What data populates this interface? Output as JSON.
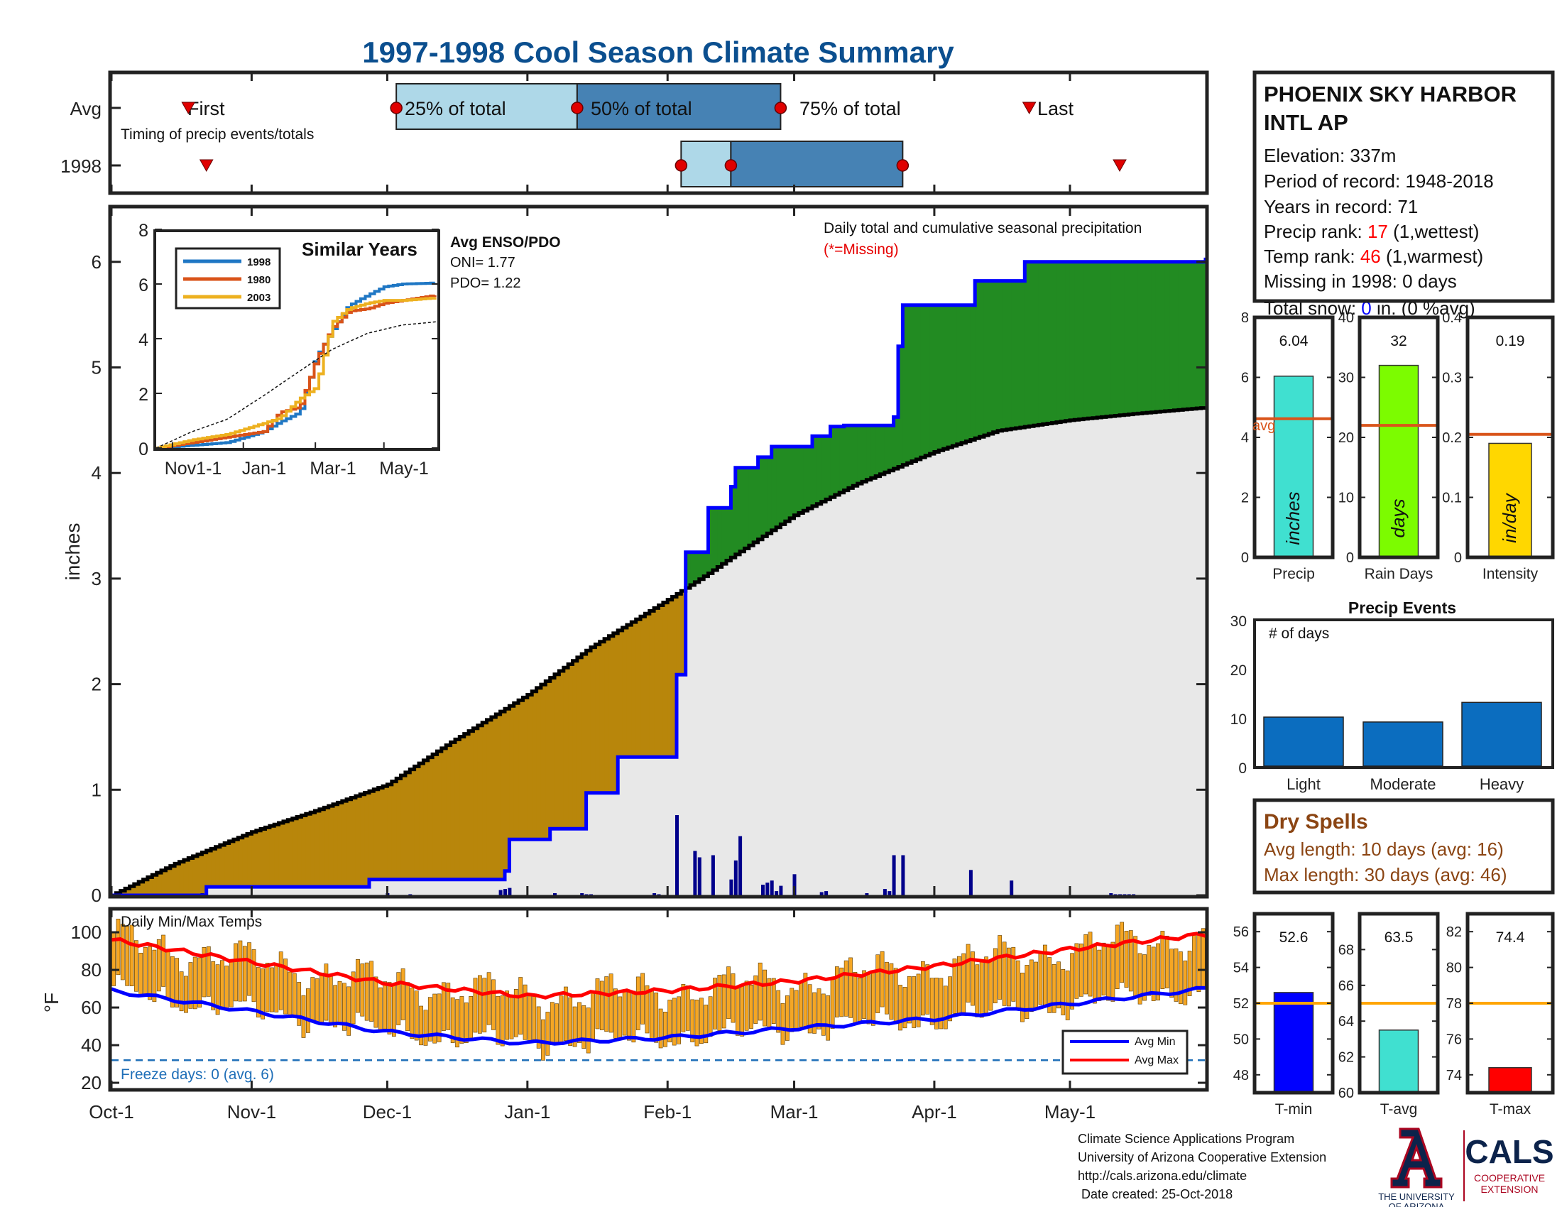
{
  "title": "1997-1998 Cool Season Climate Summary",
  "timing": {
    "avg_label": "Avg",
    "year_label": "1998",
    "caption": "Timing of precip events/totals",
    "first_label": "First",
    "q25_label": "25% of total",
    "q50_label": "50% of total",
    "q75_label": "75% of total",
    "last_label": "Last",
    "avg_dates": {
      "first": "Oct-18",
      "q25": "Dec-3",
      "q50": "Jan-12",
      "q75": "Feb-26",
      "last": "Apr-22"
    },
    "year_dates": {
      "first": "Oct-22",
      "q25": "Feb-4",
      "q50": "Feb-15",
      "q75": "Mar-25",
      "last": "May-12"
    }
  },
  "station": {
    "name_line1": "PHOENIX SKY HARBOR",
    "name_line2": "INTL AP",
    "elevation": "Elevation: 337m",
    "period": "Period of record: 1948-2018",
    "years": "Years in record: 71",
    "precip_rank_label": "Precip rank: ",
    "precip_rank_value": "17",
    "precip_rank_suffix": " (1,wettest)",
    "temp_rank_label": "Temp rank: ",
    "temp_rank_value": "46",
    "temp_rank_suffix": " (1,warmest)",
    "missing": "Missing in 1998: 0 days",
    "snow_label": "Total snow: ",
    "snow_value": "0",
    "snow_suffix": " in. (0 %avg)"
  },
  "main_panel": {
    "ylabel": "inches",
    "caption": "Daily total and cumulative seasonal precipitation",
    "missing_note": "(*=Missing)",
    "enso_title": "Avg ENSO/PDO",
    "oni": "ONI= 1.77",
    "pdo": "PDO= 1.22",
    "xticks": [
      "Oct-1",
      "Nov-1",
      "Dec-1",
      "Jan-1",
      "Feb-1",
      "Mar-1",
      "Apr-1",
      "May-1"
    ]
  },
  "inset": {
    "title": "Similar Years",
    "legend": [
      "1998",
      "1980",
      "2003"
    ],
    "colors": [
      "#1f77c4",
      "#d95319",
      "#edb120"
    ],
    "xticks": [
      "Nov1-1",
      "Jan-1",
      "Mar-1",
      "May-1"
    ],
    "yticks": [
      "0",
      "2",
      "4",
      "6",
      "8"
    ]
  },
  "temp_panel": {
    "title": "Daily Min/Max Temps",
    "ylabel": "°F",
    "freeze": "Freeze days: 0 (avg. 6)",
    "legend_min": "Avg Min",
    "legend_max": "Avg Max"
  },
  "stat_bars": {
    "precip": {
      "label": "Precip",
      "value_text": "6.04",
      "unit": "inches",
      "avg_label": "avg",
      "yticks": [
        "0",
        "2",
        "4",
        "6",
        "8"
      ]
    },
    "raindays": {
      "label": "Rain Days",
      "value_text": "32",
      "unit": "days",
      "yticks": [
        "0",
        "10",
        "20",
        "30",
        "40"
      ]
    },
    "intensity": {
      "label": "Intensity",
      "value_text": "0.19",
      "unit": "in/day",
      "yticks": [
        "0",
        "0.1",
        "0.2",
        "0.3",
        "0.4"
      ]
    }
  },
  "precip_events": {
    "title": "Precip Events",
    "caption": "# of days",
    "labels": [
      "Light",
      "Moderate",
      "Heavy"
    ],
    "yticks": [
      "0",
      "10",
      "20",
      "30"
    ]
  },
  "dry_spells": {
    "title": "Dry Spells",
    "avg_length": "Avg length: 10 days (avg: 16)",
    "max_length": "Max length: 30 days (avg: 46)"
  },
  "temp_bars": {
    "tmin": {
      "label": "T-min",
      "value_text": "52.6",
      "yticks": [
        "48",
        "50",
        "52",
        "54",
        "56"
      ]
    },
    "tavg": {
      "label": "T-avg",
      "value_text": "63.5",
      "yticks": [
        "60",
        "62",
        "64",
        "66",
        "68"
      ]
    },
    "tmax": {
      "label": "T-max",
      "value_text": "74.4",
      "yticks": [
        "74",
        "76",
        "78",
        "80",
        "82"
      ]
    }
  },
  "footer": {
    "line1": "Climate Science Applications Program",
    "line2": "University of Arizona Cooperative Extension",
    "line3": "http://cals.arizona.edu/climate",
    "line4": " Date created: 25-Oct-2018",
    "ua_line1": "THE UNIVERSITY",
    "ua_line2": "OF ARIZONA",
    "cals": "CALS",
    "cals_sub1": "COOPERATIVE",
    "cals_sub2": "EXTENSION"
  },
  "colors": {
    "title": "#0b4f8f",
    "below_avg": "#b8860b",
    "above_avg": "#228b22",
    "climo_fill": "#e8e8e8",
    "obs_line": "#0000ff",
    "daily_bar": "#00008b",
    "temp_bar": "#f5a623",
    "avg_min": "#0000ff",
    "avg_max": "#ff0000",
    "red": "#ff0000",
    "brown": "#8b4513"
  },
  "chart_data": [
    {
      "type": "area",
      "title": "Daily total and cumulative seasonal precipitation",
      "ylabel": "inches",
      "ylim": [
        0,
        6.5
      ],
      "xlim": [
        "Oct-1",
        "May-31"
      ],
      "series": [
        {
          "name": "1998",
          "x": [
            "Oct-1",
            "Oct-22",
            "Nov-27",
            "Dec-27",
            "Dec-28",
            "Jan-5",
            "Jan-6",
            "Jan-13",
            "Jan-14",
            "Jan-20",
            "Jan-21",
            "Jan-27",
            "Jan-28",
            "Feb-2",
            "Feb-3",
            "Feb-3",
            "Feb-4",
            "Feb-4",
            "Feb-5",
            "Feb-9",
            "Feb-10",
            "Feb-15",
            "Feb-16",
            "Feb-20",
            "Feb-21",
            "Feb-24",
            "Feb-25",
            "Mar-5",
            "Mar-6",
            "Mar-9",
            "Mar-10",
            "Mar-12",
            "Mar-15",
            "Mar-20",
            "Mar-22",
            "Mar-23",
            "Mar-24",
            "Mar-25",
            "Apr-10",
            "Apr-21",
            "May-31"
          ],
          "y": [
            0,
            0.08,
            0.15,
            0.23,
            0.53,
            0.53,
            0.63,
            0.63,
            0.97,
            0.97,
            1.31,
            1.31,
            1.31,
            1.31,
            2.09,
            2.09,
            2.09,
            2.09,
            3.25,
            3.25,
            3.67,
            3.87,
            4.05,
            4.05,
            4.15,
            4.25,
            4.25,
            4.35,
            4.35,
            4.44,
            4.44,
            4.45,
            4.45,
            4.45,
            4.45,
            4.53,
            5.2,
            5.59,
            5.82,
            6.0,
            6.04
          ]
        },
        {
          "name": "Average",
          "x": [
            "Oct-1",
            "Oct-15",
            "Nov-1",
            "Nov-15",
            "Dec-1",
            "Dec-15",
            "Jan-1",
            "Jan-15",
            "Feb-1",
            "Feb-10",
            "Feb-15",
            "Mar-1",
            "Mar-15",
            "Apr-1",
            "Apr-15",
            "May-1",
            "May-15",
            "May-31"
          ],
          "y": [
            0,
            0.3,
            0.6,
            0.8,
            1.05,
            1.45,
            1.9,
            2.35,
            2.8,
            3.05,
            3.2,
            3.6,
            3.9,
            4.2,
            4.4,
            4.5,
            4.56,
            4.62
          ]
        }
      ],
      "daily_precip": {
        "x": [
          "Oct-21",
          "Dec-1",
          "Dec-6",
          "Dec-26",
          "Dec-27",
          "Dec-28",
          "Jan-7",
          "Jan-13",
          "Jan-14",
          "Jan-15",
          "Jan-29",
          "Jan-30",
          "Feb-3",
          "Feb-7",
          "Feb-8",
          "Feb-11",
          "Feb-15",
          "Feb-16",
          "Feb-17",
          "Feb-22",
          "Feb-23",
          "Feb-24",
          "Feb-25",
          "Feb-26",
          "Mar-1",
          "Mar-7",
          "Mar-8",
          "Mar-17",
          "Mar-21",
          "Mar-22",
          "Mar-23",
          "Mar-25",
          "Apr-9",
          "Apr-18",
          "May-10",
          "May-11",
          "May-12",
          "May-13",
          "May-14",
          "May-15"
        ],
        "y": [
          0.02,
          0.02,
          0.01,
          0.05,
          0.06,
          0.07,
          0.02,
          0.02,
          0.01,
          0.01,
          0.02,
          0.01,
          0.76,
          0.42,
          0.36,
          0.38,
          0.15,
          0.33,
          0.56,
          0.1,
          0.12,
          0.14,
          0.04,
          0.09,
          0.2,
          0.03,
          0.04,
          0.02,
          0.06,
          0.04,
          0.38,
          0.38,
          0.24,
          0.14,
          0.02,
          0.01,
          0.01,
          0.01,
          0.01,
          0.01
        ]
      }
    },
    {
      "type": "line",
      "title": "Similar Years",
      "xlim": [
        "Oct-1",
        "May-31"
      ],
      "ylim": [
        0,
        8
      ],
      "series": [
        {
          "name": "1998",
          "x": [
            "Oct-1",
            "Nov-1",
            "Dec-1",
            "Jan-1",
            "Jan-15",
            "Feb-1",
            "Feb-15",
            "Mar-1",
            "Mar-15",
            "Apr-1",
            "Apr-15",
            "May-1",
            "May-31"
          ],
          "y": [
            0,
            0.1,
            0.2,
            0.6,
            0.95,
            1.3,
            3.3,
            4.3,
            5.2,
            5.6,
            5.9,
            6.0,
            6.04
          ]
        },
        {
          "name": "1980",
          "x": [
            "Oct-1",
            "Nov-1",
            "Dec-1",
            "Jan-1",
            "Jan-15",
            "Feb-1",
            "Feb-15",
            "Mar-1",
            "Mar-15",
            "Apr-1",
            "Apr-15",
            "May-1",
            "May-31"
          ],
          "y": [
            0,
            0.2,
            0.4,
            0.6,
            1.3,
            1.5,
            3.2,
            4.4,
            5.0,
            5.1,
            5.3,
            5.4,
            5.6
          ]
        },
        {
          "name": "2003",
          "x": [
            "Oct-1",
            "Nov-1",
            "Dec-1",
            "Jan-1",
            "Jan-15",
            "Feb-1",
            "Feb-15",
            "Mar-1",
            "Mar-15",
            "Apr-1",
            "Apr-15",
            "May-1",
            "May-31"
          ],
          "y": [
            0,
            0.3,
            0.5,
            0.9,
            1.1,
            1.8,
            2.2,
            4.6,
            5.1,
            5.3,
            5.4,
            5.4,
            5.5
          ]
        },
        {
          "name": "avg",
          "x": [
            "Oct-1",
            "Nov-1",
            "Dec-1",
            "Jan-1",
            "Feb-1",
            "Mar-1",
            "Apr-1",
            "May-1",
            "May-31"
          ],
          "y": [
            0,
            0.6,
            1.05,
            1.9,
            2.8,
            3.6,
            4.2,
            4.5,
            4.62
          ]
        }
      ]
    },
    {
      "type": "bar",
      "title": "Daily Min/Max Temps",
      "ylabel": "°F",
      "ylim": [
        20,
        105
      ],
      "xlim": [
        "Oct-1",
        "May-31"
      ],
      "series": [
        {
          "name": "Avg Max",
          "x": [
            "Oct-1",
            "Nov-1",
            "Dec-1",
            "Jan-1",
            "Feb-1",
            "Mar-1",
            "Apr-1",
            "May-1",
            "May-31"
          ],
          "y": [
            96,
            84,
            73,
            66,
            69,
            74,
            82,
            91,
            99
          ]
        },
        {
          "name": "Avg Min",
          "x": [
            "Oct-1",
            "Nov-1",
            "Dec-1",
            "Jan-1",
            "Feb-1",
            "Mar-1",
            "Apr-1",
            "May-1",
            "May-31"
          ],
          "y": [
            69,
            58,
            47,
            41,
            44,
            49,
            54,
            62,
            70
          ]
        }
      ],
      "freeze_line": 32
    },
    {
      "type": "bar",
      "title": "Precip",
      "categories": [
        "Precip"
      ],
      "values": [
        6.04
      ],
      "avg": 4.62,
      "ylim": [
        0,
        8
      ]
    },
    {
      "type": "bar",
      "title": "Rain Days",
      "categories": [
        "Rain Days"
      ],
      "values": [
        32
      ],
      "avg": 22,
      "ylim": [
        0,
        40
      ]
    },
    {
      "type": "bar",
      "title": "Intensity",
      "categories": [
        "Intensity"
      ],
      "values": [
        0.19
      ],
      "avg": 0.205,
      "ylim": [
        0,
        0.4
      ]
    },
    {
      "type": "bar",
      "title": "Precip Events",
      "categories": [
        "Light",
        "Moderate",
        "Heavy"
      ],
      "values": [
        10,
        9,
        13
      ],
      "ylim": [
        0,
        30
      ]
    },
    {
      "type": "bar",
      "title": "T-min",
      "categories": [
        "T-min"
      ],
      "values": [
        52.6
      ],
      "avg": 52,
      "ylim": [
        47,
        57
      ]
    },
    {
      "type": "bar",
      "title": "T-avg",
      "categories": [
        "T-avg"
      ],
      "values": [
        63.5
      ],
      "avg": 65,
      "ylim": [
        60,
        70
      ]
    },
    {
      "type": "bar",
      "title": "T-max",
      "categories": [
        "T-max"
      ],
      "values": [
        74.4
      ],
      "avg": 78,
      "ylim": [
        73,
        83
      ]
    }
  ]
}
